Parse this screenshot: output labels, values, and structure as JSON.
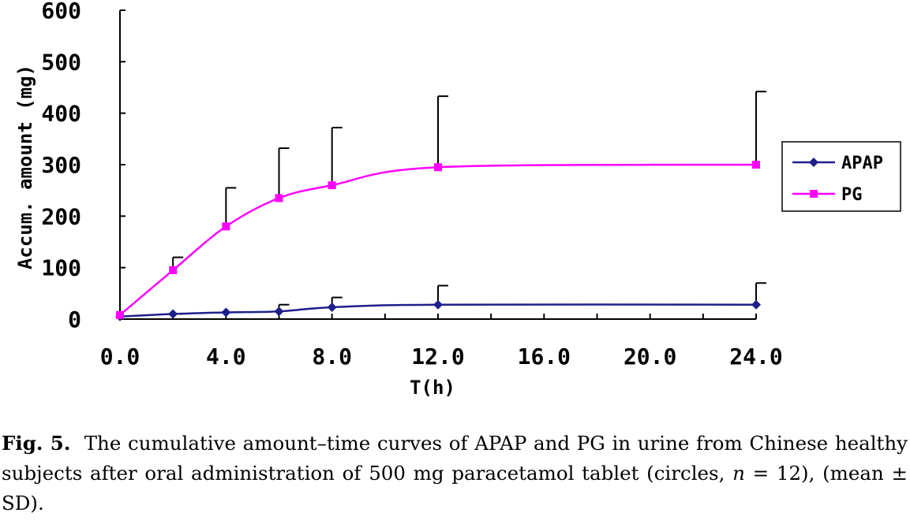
{
  "chart_data": {
    "type": "line",
    "xlabel": "T(h)",
    "ylabel": "Accum. amount (mg)",
    "x_tick_labels": [
      "0.0",
      "4.0",
      "8.0",
      "12.0",
      "16.0",
      "20.0",
      "24.0"
    ],
    "y_tick_labels": [
      "0",
      "100",
      "200",
      "300",
      "400",
      "500",
      "600"
    ],
    "ylim": [
      0,
      600
    ],
    "x_categories": [
      "0.0",
      "2.0",
      "4.0",
      "6.0",
      "8.0",
      "12.0",
      "24.0"
    ],
    "series": [
      {
        "name": "APAP",
        "color": "#1f1f8c",
        "marker": "diamond",
        "values": [
          5,
          10,
          13,
          15,
          23,
          28,
          28
        ],
        "error_upper": [
          null,
          10,
          13,
          28,
          42,
          65,
          70
        ]
      },
      {
        "name": "PG",
        "color": "#ff00ff",
        "marker": "square",
        "values": [
          8,
          95,
          180,
          235,
          260,
          295,
          300
        ],
        "error_upper": [
          null,
          120,
          255,
          332,
          372,
          433,
          442
        ]
      }
    ],
    "legend_position": "right"
  },
  "caption": {
    "label": "Fig. 5.",
    "text_part1": "The cumulative amount–time curves of APAP and PG in urine from Chinese healthy subjects after oral administration of 500 mg paracetamol tablet (circles, ",
    "n_symbol": "n",
    "text_part2": " = 12), (mean ± SD)."
  }
}
